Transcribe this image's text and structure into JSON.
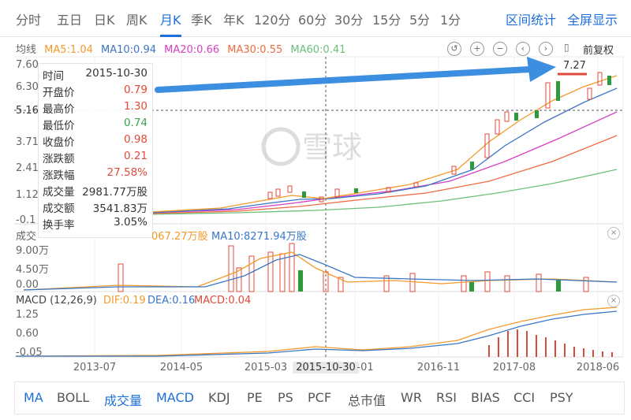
{
  "top_tabs": [
    "分时",
    "五日",
    "日K",
    "周K",
    "月K",
    "季K",
    "年K",
    "120分",
    "60分",
    "30分",
    "15分",
    "5分",
    "1分"
  ],
  "active_tab": "月K",
  "top_links": {
    "stats": "区间统计",
    "fullscreen": "全屏显示"
  },
  "ma_legend": {
    "prefix": "均线",
    "ma5": "MA5:1.04",
    "ma10": "MA10:0.94",
    "ma20": "MA20:0.66",
    "ma30": "MA30:0.55",
    "ma60": "MA60:0.41"
  },
  "adjust_label": "前复权",
  "price_axis": [
    "7.60",
    "6.30",
    "5.16",
    "3.71",
    "2.41",
    "1.12",
    "-0.1"
  ],
  "high_marker": "7.27",
  "watermark": "雪球",
  "tooltip": {
    "time_label": "时间",
    "time": "2015-10-30",
    "open_label": "开盘价",
    "open": "0.79",
    "high_label": "最高价",
    "high": "1.30",
    "low_label": "最低价",
    "low": "0.74",
    "close_label": "收盘价",
    "close": "0.98",
    "change_label": "涨跌额",
    "change": "0.21",
    "pct_label": "涨跌幅",
    "pct": "27.58%",
    "vol_label": "成交量",
    "vol": "2981.77万股",
    "amt_label": "成交额",
    "amt": "3541.83万",
    "turnover_label": "换手率",
    "turnover": "3.05%"
  },
  "volume_legend": {
    "prefix": "成交",
    "ma5": "067.27万股",
    "ma10": "MA10:8271.94万股"
  },
  "volume_axis": [
    "9.00万",
    "4.50万",
    "0.00"
  ],
  "macd_legend": {
    "prefix": "MACD (12,26,9)",
    "dif": "DIF:0.19",
    "dea": "DEA:0.16",
    "macd": "MACD:0.04"
  },
  "macd_axis": [
    "1.25",
    "0.60",
    "-0.05"
  ],
  "x_axis": [
    "2013-07",
    "2014-05",
    "2015-03",
    "2015-10-30",
    "-01",
    "2016-11",
    "2017-08",
    "2018-06"
  ],
  "bottom_tabs": [
    "MA",
    "BOLL",
    "成交量",
    "MACD",
    "KDJ",
    "PE",
    "PS",
    "PCF",
    "总市值",
    "WR",
    "RSI",
    "BIAS",
    "CCI",
    "PSY"
  ],
  "colors": {
    "up": "#e04a3a",
    "down": "#2f9a3c",
    "accent": "#1e6fd9",
    "ma5": "#f39a2a",
    "ma10": "#3a76c6",
    "ma20": "#d63fc3",
    "ma30": "#ee6b3f",
    "ma60": "#6cc07a"
  }
}
